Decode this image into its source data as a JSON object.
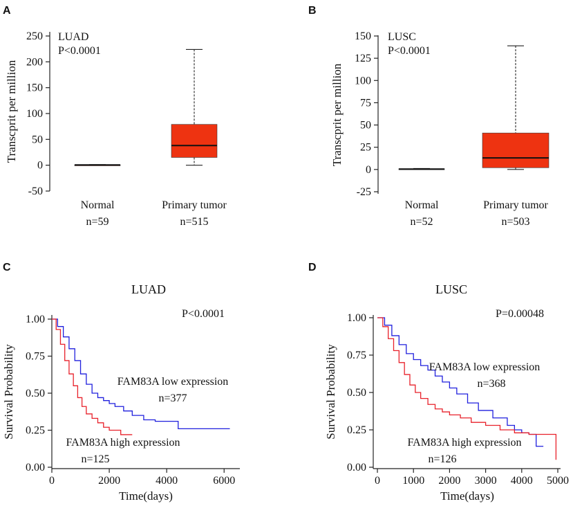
{
  "colors": {
    "box_fill": "#ee3311",
    "low_curve": "#1f1fdd",
    "high_curve": "#e8202a",
    "high_label": "#777777"
  },
  "panels": {
    "A": {
      "label": "A"
    },
    "B": {
      "label": "B"
    },
    "C": {
      "label": "C"
    },
    "D": {
      "label": "D"
    }
  },
  "chart_data": [
    {
      "type": "box",
      "panel": "A",
      "dataset": "LUAD",
      "p_value": "P<0.0001",
      "ylabel": "Transcprit per million",
      "ylim": [
        -50,
        250
      ],
      "yticks": [
        -50,
        0,
        50,
        100,
        150,
        200,
        250
      ],
      "groups": [
        {
          "name": "Normal",
          "n_label": "n=59",
          "min": 0,
          "q1": 0.3,
          "median": 0.6,
          "q3": 0.9,
          "max": 1.2
        },
        {
          "name": "Primary tumor",
          "n_label": "n=515",
          "min": 0,
          "q1": 15,
          "median": 38,
          "q3": 79,
          "max": 224
        }
      ]
    },
    {
      "type": "box",
      "panel": "B",
      "dataset": "LUSC",
      "p_value": "P<0.0001",
      "ylabel": "Transcprit per million",
      "ylim": [
        -25,
        150
      ],
      "yticks": [
        -25,
        0,
        25,
        50,
        75,
        100,
        125,
        150
      ],
      "groups": [
        {
          "name": "Normal",
          "n_label": "n=52",
          "min": 0,
          "q1": 0.2,
          "median": 0.5,
          "q3": 0.9,
          "max": 1.1
        },
        {
          "name": "Primary tumor",
          "n_label": "n=503",
          "min": 0,
          "q1": 2,
          "median": 13,
          "q3": 41,
          "max": 139
        }
      ]
    },
    {
      "type": "line",
      "subtype": "kaplan-meier",
      "panel": "C",
      "title": "LUAD",
      "p_value": "P<0.0001",
      "xlabel": "Time(days)",
      "ylabel": "Survival Probability",
      "xlim": [
        0,
        6500
      ],
      "ylim": [
        0,
        1
      ],
      "xticks": [
        0,
        2000,
        4000,
        6000
      ],
      "yticks": [
        "0.00",
        "0.25",
        "0.50",
        "0.75",
        "1.00"
      ],
      "series": [
        {
          "name": "FAM83A low expression",
          "n_label": "n=377",
          "color_key": "low_curve",
          "x": [
            0,
            200,
            400,
            600,
            800,
            1000,
            1200,
            1400,
            1600,
            1800,
            2000,
            2200,
            2500,
            2800,
            3200,
            3600,
            4000,
            4400,
            4400,
            5000,
            5500,
            6200
          ],
          "y": [
            1.0,
            0.95,
            0.88,
            0.8,
            0.72,
            0.63,
            0.56,
            0.5,
            0.47,
            0.45,
            0.43,
            0.41,
            0.38,
            0.35,
            0.32,
            0.31,
            0.31,
            0.31,
            0.26,
            0.26,
            0.26,
            0.26
          ]
        },
        {
          "name": "FAM83A high expression",
          "n_label": "n=125",
          "color_key": "high_curve",
          "x": [
            0,
            150,
            300,
            450,
            600,
            750,
            900,
            1050,
            1200,
            1400,
            1600,
            1800,
            2000,
            2400,
            2800
          ],
          "y": [
            1.0,
            0.93,
            0.83,
            0.72,
            0.63,
            0.55,
            0.47,
            0.41,
            0.36,
            0.33,
            0.3,
            0.27,
            0.25,
            0.22,
            0.22
          ]
        }
      ]
    },
    {
      "type": "line",
      "subtype": "kaplan-meier",
      "panel": "D",
      "title": "LUSC",
      "p_value": "P=0.00048",
      "xlabel": "Time(days)",
      "ylabel": "Survival Probability",
      "xlim": [
        0,
        5000
      ],
      "ylim": [
        0,
        1
      ],
      "xticks": [
        0,
        1000,
        2000,
        3000,
        4000,
        5000
      ],
      "yticks": [
        "0.00",
        "0.25",
        "0.50",
        "0.75",
        "1.00"
      ],
      "series": [
        {
          "name": "FAM83A low expression",
          "n_label": "n=368",
          "color_key": "low_curve",
          "x": [
            0,
            200,
            400,
            600,
            800,
            1000,
            1200,
            1400,
            1600,
            1800,
            2000,
            2200,
            2500,
            2800,
            3200,
            3600,
            3800,
            4000,
            4200,
            4400,
            4400,
            4600
          ],
          "y": [
            1.0,
            0.95,
            0.88,
            0.82,
            0.76,
            0.72,
            0.68,
            0.65,
            0.61,
            0.57,
            0.53,
            0.49,
            0.43,
            0.38,
            0.33,
            0.28,
            0.25,
            0.23,
            0.22,
            0.22,
            0.14,
            0.14
          ]
        },
        {
          "name": "FAM83A high expression",
          "n_label": "n=126",
          "color_key": "high_curve",
          "x": [
            0,
            150,
            300,
            450,
            600,
            750,
            900,
            1050,
            1200,
            1400,
            1600,
            1800,
            2000,
            2300,
            2600,
            3000,
            3400,
            3800,
            4200,
            4600,
            4950,
            4950
          ],
          "y": [
            1.0,
            0.94,
            0.86,
            0.78,
            0.7,
            0.62,
            0.55,
            0.5,
            0.46,
            0.42,
            0.39,
            0.37,
            0.35,
            0.33,
            0.3,
            0.28,
            0.25,
            0.23,
            0.22,
            0.22,
            0.22,
            0.05
          ]
        }
      ]
    }
  ]
}
